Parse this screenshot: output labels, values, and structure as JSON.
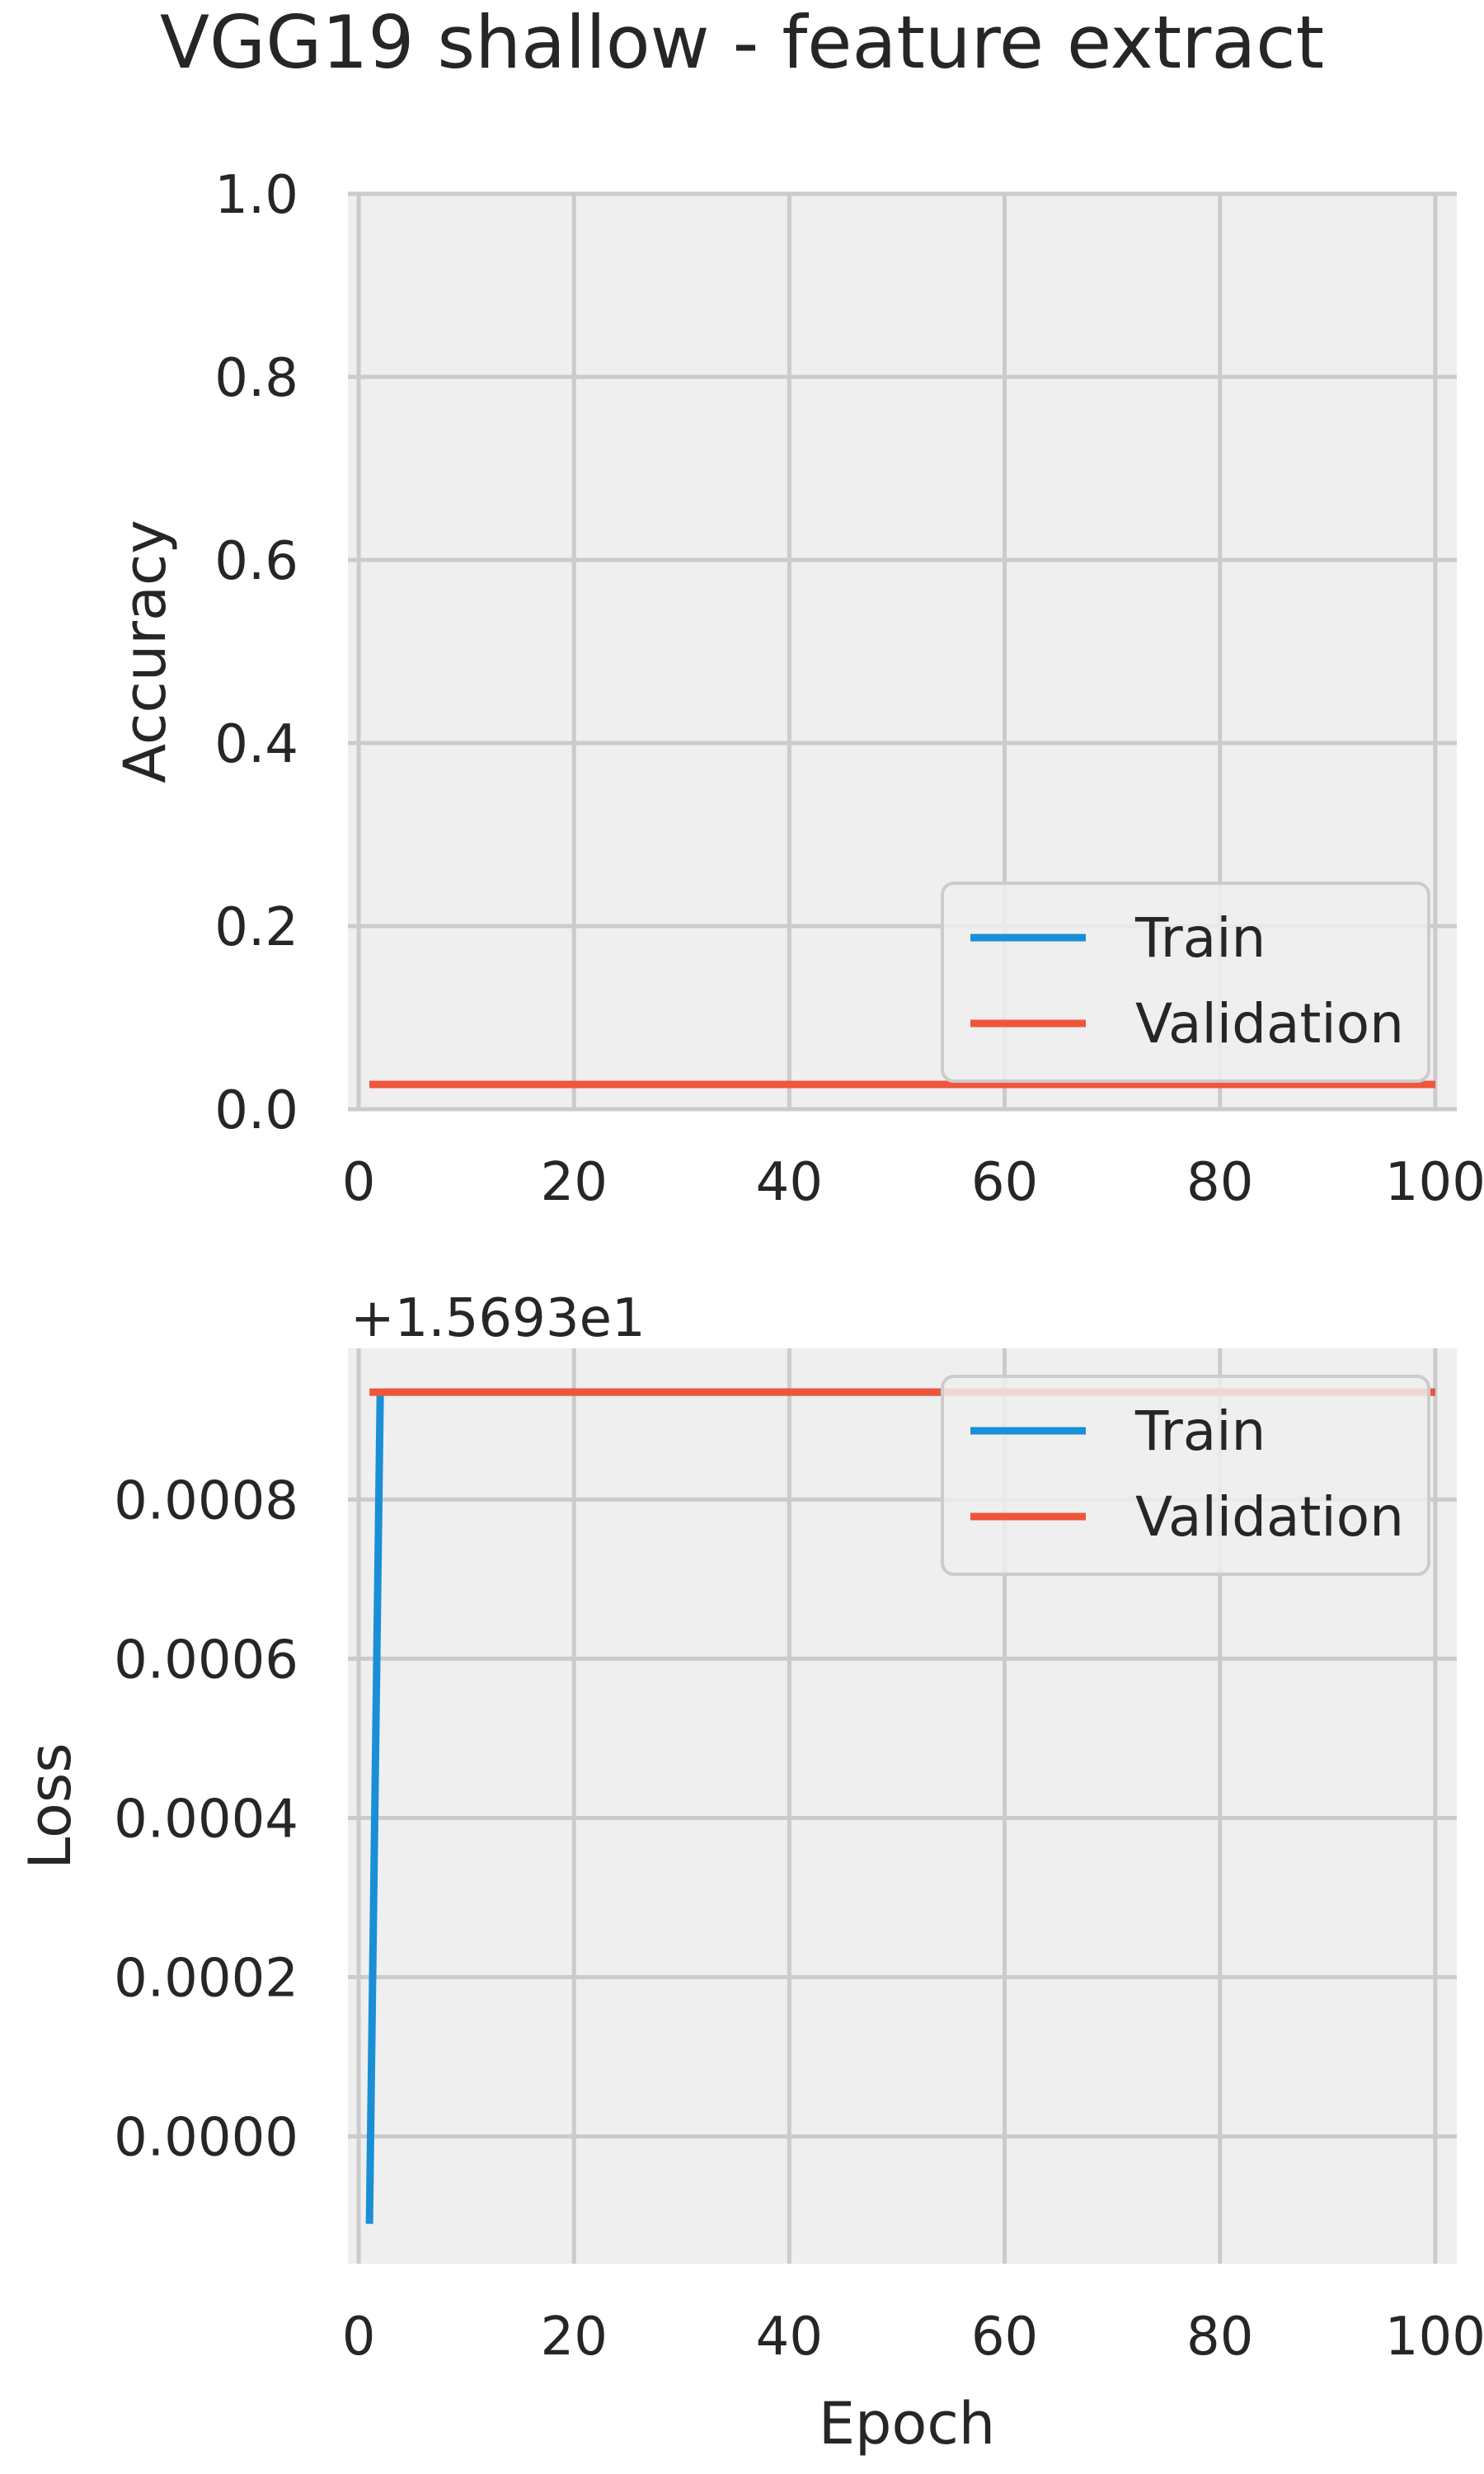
{
  "figure": {
    "title": "VGG19 shallow - feature extract"
  },
  "colors": {
    "train": "#1a8fd5",
    "validation": "#f0553a",
    "plot_background": "#efefef",
    "grid": "#cbcbcb",
    "text": "#262626"
  },
  "chart_data": [
    {
      "type": "line",
      "title": "",
      "xlabel": "",
      "ylabel": "Accuracy",
      "xlim": [
        -1,
        102
      ],
      "ylim": [
        0.0,
        1.0
      ],
      "xticks": [
        0,
        20,
        40,
        60,
        80,
        100
      ],
      "xtick_labels": [
        "0",
        "20",
        "40",
        "60",
        "80",
        "100"
      ],
      "yticks": [
        0.0,
        0.2,
        0.4,
        0.6,
        0.8,
        1.0
      ],
      "ytick_labels": [
        "0.0",
        "0.2",
        "0.4",
        "0.6",
        "0.8",
        "1.0"
      ],
      "offset_text": "",
      "grid": true,
      "legend_position": "lower right",
      "series": [
        {
          "name": "Train",
          "color": "#1a8fd5",
          "x": [
            1,
            100
          ],
          "y": [
            0.027,
            0.027
          ]
        },
        {
          "name": "Validation",
          "color": "#f0553a",
          "x": [
            1,
            100
          ],
          "y": [
            0.027,
            0.027
          ]
        }
      ]
    },
    {
      "type": "line",
      "title": "",
      "xlabel": "Epoch",
      "ylabel": "Loss",
      "xlim": [
        -1,
        102
      ],
      "ylim": [
        -0.00016,
        0.00099
      ],
      "xticks": [
        0,
        20,
        40,
        60,
        80,
        100
      ],
      "xtick_labels": [
        "0",
        "20",
        "40",
        "60",
        "80",
        "100"
      ],
      "yticks": [
        0.0,
        0.0002,
        0.0004,
        0.0006,
        0.0008
      ],
      "ytick_labels": [
        "0.0000",
        "0.0002",
        "0.0004",
        "0.0006",
        "0.0008"
      ],
      "offset_text": "+1.5693e1",
      "grid": true,
      "legend_position": "upper right",
      "series": [
        {
          "name": "Train",
          "color": "#1a8fd5",
          "x": [
            1,
            2,
            3,
            100
          ],
          "y": [
            -0.00011,
            0.000935,
            0.000935,
            0.000935
          ]
        },
        {
          "name": "Validation",
          "color": "#f0553a",
          "x": [
            1,
            100
          ],
          "y": [
            0.000935,
            0.000935
          ]
        }
      ]
    }
  ]
}
